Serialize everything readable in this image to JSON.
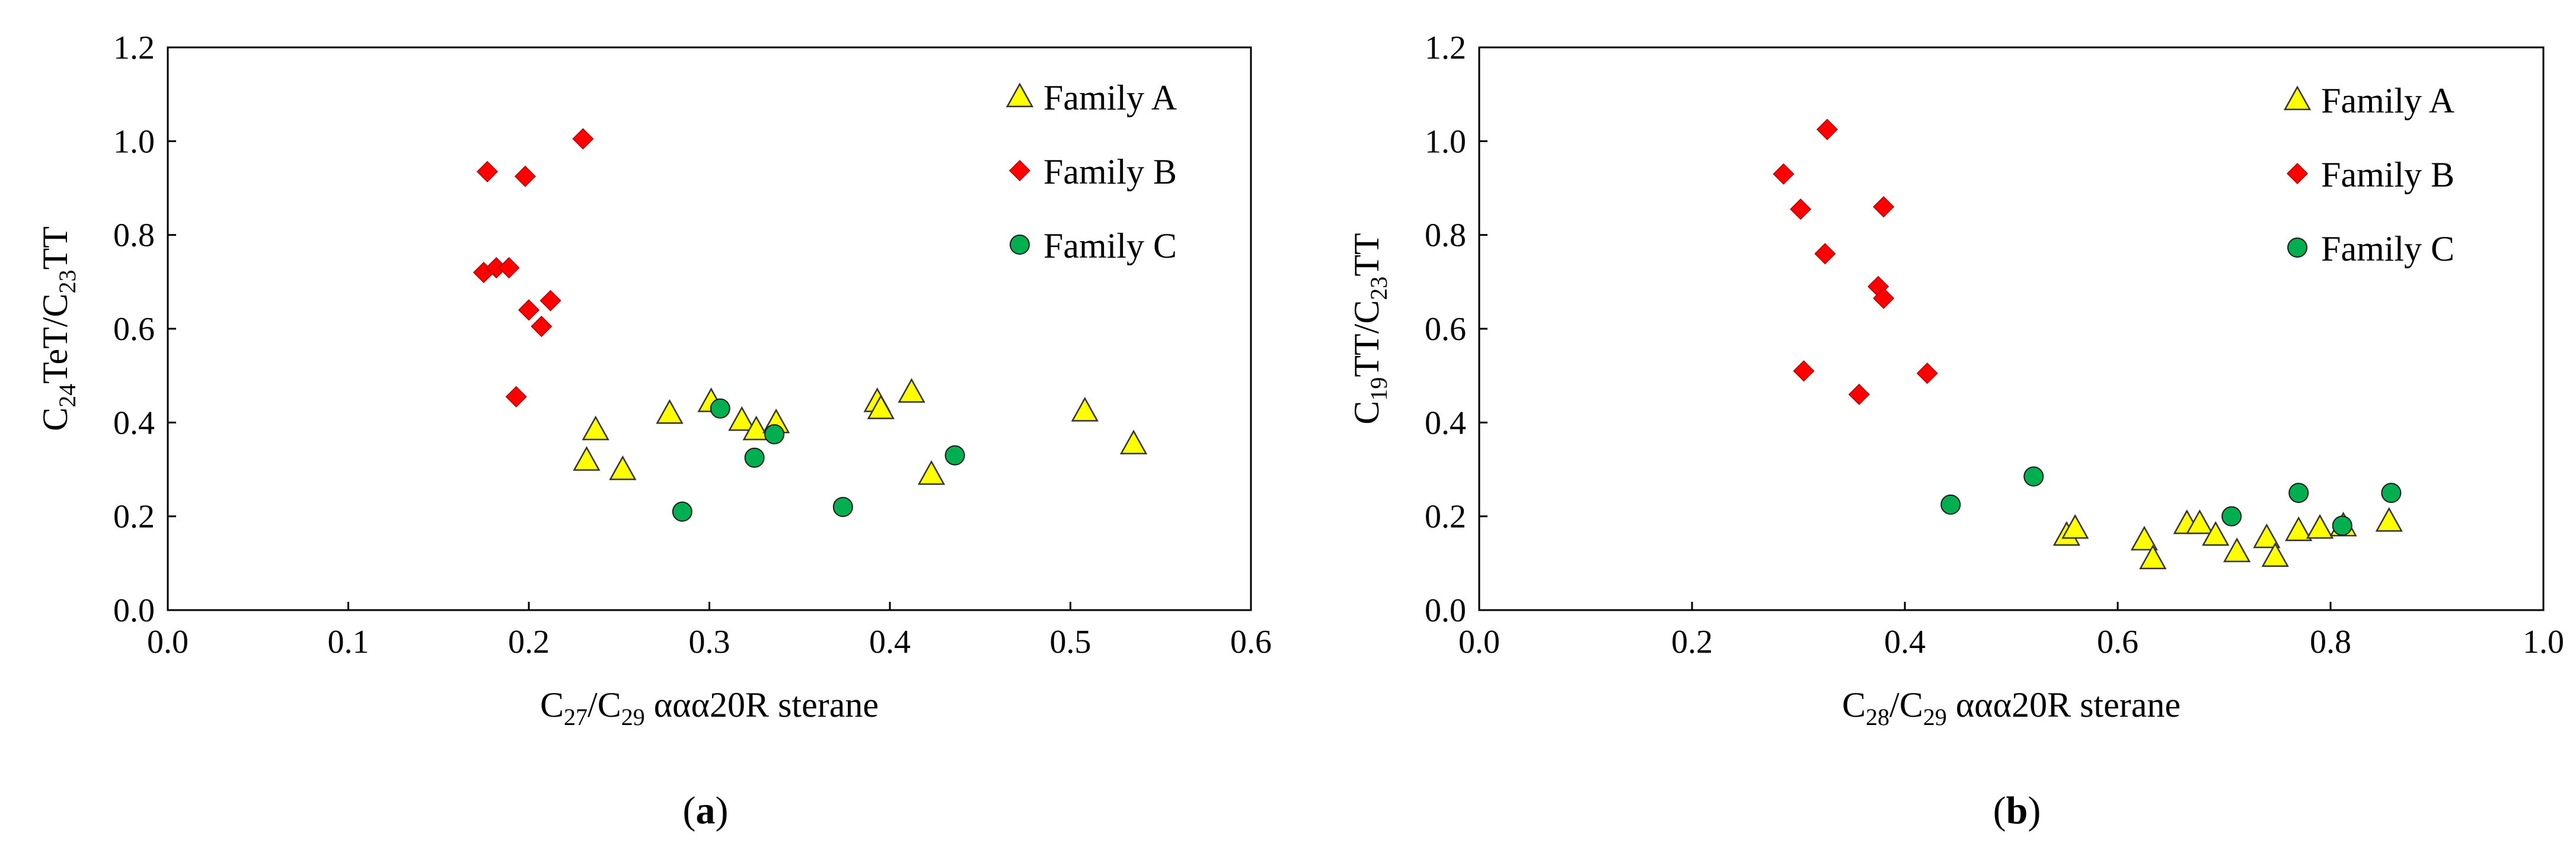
{
  "chart_data": [
    {
      "type": "scatter",
      "panel_label": "a",
      "xlabel": {
        "base": "C",
        "sub1": "27",
        "mid": "/C",
        "sub2": "29",
        "rest": " ααα20R sterane"
      },
      "ylabel": {
        "base": "C",
        "sub1": "24",
        "mid": "TeT/C",
        "sub2": "23",
        "rest": "TT"
      },
      "xlim": [
        0.0,
        0.6
      ],
      "ylim": [
        0.0,
        1.2
      ],
      "xticks": [
        "0.0",
        "0.1",
        "0.2",
        "0.3",
        "0.4",
        "0.5",
        "0.6"
      ],
      "yticks": [
        "0.0",
        "0.2",
        "0.4",
        "0.6",
        "0.8",
        "1.0",
        "1.2"
      ],
      "legend_position": "top-right",
      "series": [
        {
          "name": "Family A",
          "marker": "triangle",
          "color": "#FFFF00",
          "points": [
            [
              0.232,
              0.32
            ],
            [
              0.237,
              0.385
            ],
            [
              0.252,
              0.3
            ],
            [
              0.278,
              0.42
            ],
            [
              0.301,
              0.445
            ],
            [
              0.318,
              0.405
            ],
            [
              0.326,
              0.385
            ],
            [
              0.337,
              0.4
            ],
            [
              0.393,
              0.445
            ],
            [
              0.395,
              0.43
            ],
            [
              0.412,
              0.465
            ],
            [
              0.423,
              0.29
            ],
            [
              0.508,
              0.425
            ],
            [
              0.535,
              0.355
            ]
          ]
        },
        {
          "name": "Family B",
          "marker": "diamond",
          "color": "#FF0000",
          "points": [
            [
              0.177,
              0.935
            ],
            [
              0.198,
              0.925
            ],
            [
              0.23,
              1.005
            ],
            [
              0.175,
              0.72
            ],
            [
              0.182,
              0.73
            ],
            [
              0.189,
              0.73
            ],
            [
              0.2,
              0.64
            ],
            [
              0.207,
              0.605
            ],
            [
              0.212,
              0.66
            ],
            [
              0.193,
              0.455
            ]
          ]
        },
        {
          "name": "Family C",
          "marker": "circle",
          "color": "#00B050",
          "points": [
            [
              0.306,
              0.43
            ],
            [
              0.325,
              0.325
            ],
            [
              0.336,
              0.375
            ],
            [
              0.285,
              0.21
            ],
            [
              0.374,
              0.22
            ],
            [
              0.436,
              0.33
            ]
          ]
        }
      ]
    },
    {
      "type": "scatter",
      "panel_label": "b",
      "xlabel": {
        "base": "C",
        "sub1": "28",
        "mid": "/C",
        "sub2": "29",
        "rest": " ααα20R sterane"
      },
      "ylabel": {
        "base": "C",
        "sub1": "19",
        "mid": "TT/C",
        "sub2": "23",
        "rest": "TT"
      },
      "xlim": [
        0.0,
        1.0
      ],
      "ylim": [
        0.0,
        1.2
      ],
      "xticks": [
        "0.0",
        "0.2",
        "0.4",
        "0.6",
        "0.8",
        "1.0"
      ],
      "yticks": [
        "0.0",
        "0.2",
        "0.4",
        "0.6",
        "0.8",
        "1.0",
        "1.2"
      ],
      "legend_position": "top-right",
      "series": [
        {
          "name": "Family A",
          "marker": "triangle",
          "color": "#FFFF00",
          "points": [
            [
              0.552,
              0.16
            ],
            [
              0.56,
              0.175
            ],
            [
              0.625,
              0.15
            ],
            [
              0.633,
              0.11
            ],
            [
              0.665,
              0.185
            ],
            [
              0.677,
              0.185
            ],
            [
              0.692,
              0.16
            ],
            [
              0.712,
              0.125
            ],
            [
              0.74,
              0.155
            ],
            [
              0.748,
              0.115
            ],
            [
              0.77,
              0.17
            ],
            [
              0.79,
              0.175
            ],
            [
              0.812,
              0.18
            ],
            [
              0.855,
              0.19
            ]
          ]
        },
        {
          "name": "Family B",
          "marker": "diamond",
          "color": "#FF0000",
          "points": [
            [
              0.327,
              1.025
            ],
            [
              0.286,
              0.93
            ],
            [
              0.302,
              0.855
            ],
            [
              0.38,
              0.86
            ],
            [
              0.325,
              0.76
            ],
            [
              0.375,
              0.69
            ],
            [
              0.38,
              0.665
            ],
            [
              0.305,
              0.51
            ],
            [
              0.357,
              0.46
            ],
            [
              0.421,
              0.505
            ]
          ]
        },
        {
          "name": "Family C",
          "marker": "circle",
          "color": "#00B050",
          "points": [
            [
              0.443,
              0.225
            ],
            [
              0.521,
              0.285
            ],
            [
              0.707,
              0.2
            ],
            [
              0.77,
              0.25
            ],
            [
              0.811,
              0.18
            ],
            [
              0.857,
              0.25
            ]
          ]
        }
      ]
    }
  ]
}
